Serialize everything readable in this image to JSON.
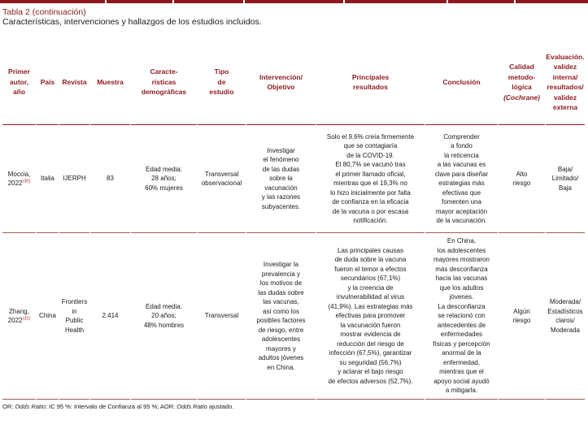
{
  "title": "Tabla 2 (continuación)",
  "subtitle": "Características, intervenciones y hallazgos de los estudios incluidos.",
  "colors": {
    "accent_red": "#8d1a1e",
    "reference_red": "#b01f24",
    "divider": "#9b5c5c",
    "text": "#1a1a1a"
  },
  "columns": [
    {
      "id": "author",
      "label": "Primer\nautor,\naño"
    },
    {
      "id": "country",
      "label": "País"
    },
    {
      "id": "journal",
      "label": "Revista"
    },
    {
      "id": "sample",
      "label": "Muestra"
    },
    {
      "id": "demographics",
      "label": "Caracte-\nrísticas\ndemográficas"
    },
    {
      "id": "study-type",
      "label": "Tipo\nde\nestudio"
    },
    {
      "id": "intervention",
      "label": "Intervención/\nObjetivo"
    },
    {
      "id": "results",
      "label": "Principales\nresultados"
    },
    {
      "id": "conclusion",
      "label": "Conclusión"
    },
    {
      "id": "quality",
      "label": "Calidad\nmetodo-\nlógica\n",
      "label_italic": "(Cochrane)"
    },
    {
      "id": "evaluation",
      "label": "Evaluación.\nvalidez\ninterna/\nresultados/\nvalidez\nexterna"
    }
  ],
  "rows": [
    {
      "author_lines": "Moccia,\n2022",
      "ref": "(30)",
      "country": "Italia",
      "journal": "IJERPH",
      "sample": "83",
      "demographics": "Edad media:\n28 años;\n60% mujeres",
      "study_type": "Transversal\nobservacional",
      "intervention": "Investigar\nel fenómeno\nde las dudas\nsobre la\nvacunación\ny las razones\nsubyacentes.",
      "results": "Solo el 9,6% creía firmemente\nque se contagiaría\nde la COVID-19.\nEl 80,7% se vacunó tras\nel primer llamado oficial,\nmientras que el 19,3% no\nlo hizo inicialmente por falta\nde confianza en la eficacia\nde la vacuna o por escasa\nnotificación.",
      "conclusion": "Comprender\na fondo\nla reticencia\na las vacunas es\nclave para diseñar\nestrategias más\nefectivas que\nfomenten una\nmayor aceptación\nde la vacunación.",
      "quality": "Alto\nriesgo",
      "evaluation": "Baja/\nLimitado/\nBaja"
    },
    {
      "author_lines": "Zhang,\n2022",
      "ref": "(31)",
      "country": "China",
      "journal": "Frontiers\nin\nPublic\nHealth",
      "sample": "2.414",
      "demographics": "Edad media:\n20 años;\n48% hombres",
      "study_type": "Transversal",
      "intervention": "Investigar la\nprevalencia y\nlos motivos de\nlas dudas sobre\nlas vacunas,\nasí como los\nposibles factores\nde riesgo, entre\nadolescentes\nmayores y\nadultos jóvenes\nen China.",
      "results": "Las principales causas\nde duda sobre la vacuna\nfueron el temor a efectos\nsecundarios (67,1%)\ny la creencia de\ninvulnerabilidad al virus\n(41,9%). Las estrategias más\nefectivas para promover\nla vacunación fueron\nmostrar evidencia de\nreducción del riesgo de\ninfección (67,5%), garantizar\nsu seguridad (56,7%)\ny aclarar el bajo riesgo\nde efectos adversos (52,7%).",
      "conclusion": "En China,\nlos adolescentes\nmayores mostraron\nmás desconfianza\nhacia las vacunas\nque los adultos\njóvenes.\nLa desconfianza\nse relacionó con\nantecedentes de\nenfermedades\nfísicas y percepción\nanormal de la\nenfermedad,\nmientras que el\napoyo social ayudó\na mitigarla.",
      "quality": "Algún\nriesgo",
      "evaluation": "Moderada/\nEstadísticos\nclaros/\nModerada"
    }
  ],
  "footnote": {
    "part1": "OR: ",
    "italic1": "Odds Ratio",
    "part2": "; IC 95 %: Intervalo de Confianza al 95 %; AOR: ",
    "italic2": "Odds Ratio",
    "part3": " ajustado."
  }
}
